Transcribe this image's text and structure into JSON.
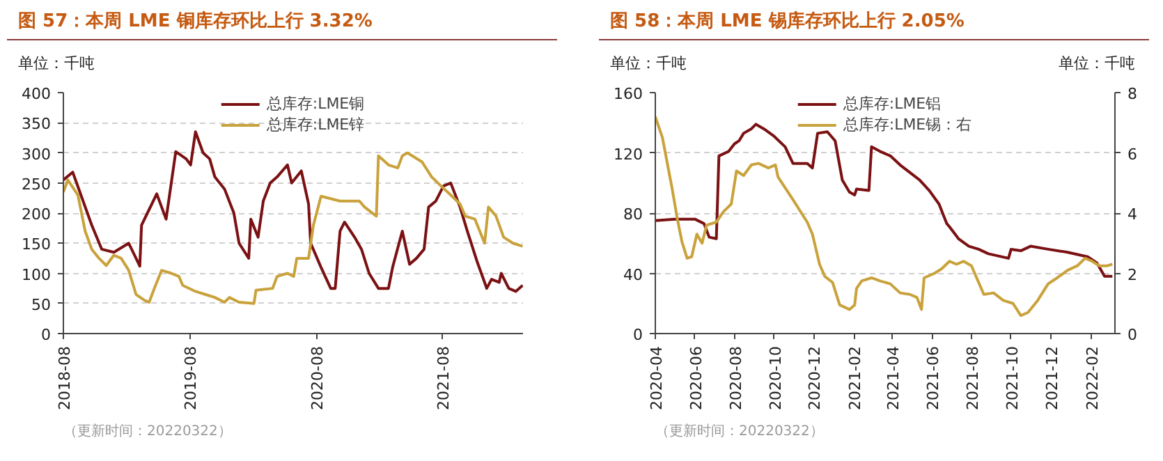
{
  "chart_data": [
    {
      "type": "line",
      "title": "图 57：本周 LME 铜库存环比上行 3.32%",
      "ylabel": "单位：千吨",
      "xlim": [
        "2018-08-01",
        "2022-03-22"
      ],
      "xticks": [
        "2018-08",
        "2019-08",
        "2020-08",
        "2021-08"
      ],
      "ylim": [
        0,
        400
      ],
      "yticks": [
        0,
        50,
        100,
        150,
        200,
        250,
        300,
        350,
        400
      ],
      "grid": "y",
      "legend": "top",
      "annotations": [
        "（更新时间：20220322）"
      ],
      "series": [
        {
          "name": "总库存:LME铜",
          "color": "#7b1113",
          "x": [
            "2018-08-01",
            "2018-08-28",
            "2018-10-22",
            "2018-11-20",
            "2018-12-25",
            "2019-02-06",
            "2019-03-10",
            "2019-03-15",
            "2019-04-01",
            "2019-04-28",
            "2019-05-25",
            "2019-06-22",
            "2019-07-22",
            "2019-08-04",
            "2019-08-18",
            "2019-09-09",
            "2019-09-28",
            "2019-10-13",
            "2019-11-10",
            "2019-12-07",
            "2019-12-22",
            "2020-01-19",
            "2020-01-25",
            "2020-02-15",
            "2020-03-01",
            "2020-03-21",
            "2020-04-10",
            "2020-05-10",
            "2020-05-22",
            "2020-06-19",
            "2020-07-10",
            "2020-07-16",
            "2020-08-15",
            "2020-09-12",
            "2020-09-25",
            "2020-10-09",
            "2020-10-22",
            "2020-11-20",
            "2020-12-10",
            "2021-01-01",
            "2021-01-28",
            "2021-02-26",
            "2021-03-10",
            "2021-04-07",
            "2021-04-28",
            "2021-05-18",
            "2021-06-09",
            "2021-06-22",
            "2021-07-13",
            "2021-08-04",
            "2021-08-25",
            "2021-09-21",
            "2021-10-12",
            "2021-11-09",
            "2021-12-01",
            "2021-12-07",
            "2021-12-21",
            "2022-01-12",
            "2022-01-18",
            "2022-02-09",
            "2022-03-01",
            "2022-03-21"
          ],
          "values": [
            255,
            268,
            180,
            140,
            135,
            150,
            112,
            180,
            200,
            232,
            190,
            302,
            290,
            280,
            335,
            300,
            290,
            260,
            240,
            200,
            150,
            125,
            190,
            160,
            220,
            250,
            260,
            280,
            250,
            270,
            215,
            150,
            110,
            75,
            75,
            170,
            185,
            160,
            140,
            100,
            75,
            75,
            110,
            170,
            115,
            125,
            140,
            210,
            220,
            245,
            250,
            210,
            170,
            120,
            85,
            75,
            90,
            85,
            100,
            75,
            70,
            80
          ]
        },
        {
          "name": "总库存:LME锌",
          "color": "#c9a23c",
          "x": [
            "2018-08-01",
            "2018-08-14",
            "2018-09-12",
            "2018-10-03",
            "2018-10-22",
            "2018-11-12",
            "2018-12-03",
            "2018-12-25",
            "2019-01-15",
            "2019-02-06",
            "2019-02-27",
            "2019-03-24",
            "2019-04-06",
            "2019-04-21",
            "2019-05-12",
            "2019-06-09",
            "2019-07-01",
            "2019-07-12",
            "2019-08-18",
            "2019-09-15",
            "2019-10-13",
            "2019-11-10",
            "2019-11-24",
            "2019-12-22",
            "2020-02-03",
            "2020-02-09",
            "2020-03-28",
            "2020-04-10",
            "2020-05-10",
            "2020-05-28",
            "2020-06-06",
            "2020-07-10",
            "2020-07-24",
            "2020-08-15",
            "2020-10-09",
            "2020-12-04",
            "2020-12-19",
            "2021-01-22",
            "2021-01-28",
            "2021-02-26",
            "2021-03-25",
            "2021-04-07",
            "2021-04-22",
            "2021-06-03",
            "2021-07-01",
            "2021-07-28",
            "2021-08-25",
            "2021-09-21",
            "2021-10-06",
            "2021-11-03",
            "2021-12-01",
            "2021-12-12",
            "2022-01-03",
            "2022-01-25",
            "2022-02-21",
            "2022-03-21"
          ],
          "values": [
            235,
            255,
            230,
            170,
            140,
            125,
            113,
            130,
            125,
            105,
            65,
            55,
            52,
            75,
            105,
            100,
            95,
            80,
            70,
            65,
            60,
            52,
            60,
            52,
            50,
            72,
            75,
            95,
            100,
            95,
            125,
            125,
            180,
            228,
            220,
            220,
            210,
            195,
            295,
            280,
            275,
            295,
            300,
            285,
            260,
            245,
            230,
            215,
            195,
            190,
            150,
            210,
            195,
            160,
            150,
            145
          ]
        }
      ]
    },
    {
      "type": "line",
      "title": "图 58：本周 LME 锡库存环比上行 2.05%",
      "ylabel": "单位：千吨",
      "y2label": "单位：千吨",
      "xlim": [
        "2020-04-01",
        "2022-03-10"
      ],
      "xticks": [
        "2020-04",
        "2020-06",
        "2020-08",
        "2020-10",
        "2020-12",
        "2021-02",
        "2021-04",
        "2021-06",
        "2021-08",
        "2021-10",
        "2021-12",
        "2022-02"
      ],
      "ylim": [
        0,
        160
      ],
      "yticks": [
        0,
        40,
        80,
        120,
        160
      ],
      "y2lim": [
        0,
        8
      ],
      "y2ticks": [
        0,
        2,
        4,
        6,
        8
      ],
      "grid": "y",
      "legend": "top",
      "annotations": [
        "（更新时间：20220322）"
      ],
      "series": [
        {
          "name": "总库存:LME铝",
          "color": "#7b1113",
          "x": [
            "2020-04-01",
            "2020-05-01",
            "2020-06-01",
            "2020-06-15",
            "2020-06-23",
            "2020-07-04",
            "2020-07-08",
            "2020-07-23",
            "2020-08-01",
            "2020-08-08",
            "2020-08-15",
            "2020-08-27",
            "2020-09-03",
            "2020-09-15",
            "2020-10-01",
            "2020-10-18",
            "2020-10-30",
            "2020-11-21",
            "2020-11-29",
            "2020-12-07",
            "2020-12-22",
            "2021-01-03",
            "2021-01-14",
            "2021-01-25",
            "2021-02-02",
            "2021-02-05",
            "2021-02-24",
            "2021-02-28",
            "2021-03-13",
            "2021-03-29",
            "2021-04-13",
            "2021-04-28",
            "2021-05-13",
            "2021-05-28",
            "2021-06-12",
            "2021-06-24",
            "2021-06-28",
            "2021-07-12",
            "2021-07-28",
            "2021-08-12",
            "2021-08-27",
            "2021-09-27",
            "2021-10-01",
            "2021-10-16",
            "2021-10-31",
            "2021-11-27",
            "2021-12-27",
            "2022-01-27",
            "2022-02-10",
            "2022-02-22",
            "2022-03-06"
          ],
          "values": [
            75,
            76,
            76,
            73,
            64,
            63,
            118,
            121,
            126,
            128,
            133,
            136,
            139,
            136,
            131,
            124,
            113,
            113,
            110,
            133,
            134,
            128,
            102,
            94,
            92,
            96,
            95,
            124,
            121,
            118,
            112,
            107,
            102,
            95,
            86,
            73,
            71,
            63,
            58,
            56,
            53,
            50,
            56,
            55,
            58,
            56,
            54,
            51,
            47,
            38,
            38
          ]
        },
        {
          "name": "总库存:LME锡：右",
          "color": "#c9a23c",
          "axis": "y2",
          "x": [
            "2020-04-01",
            "2020-04-12",
            "2020-04-27",
            "2020-05-05",
            "2020-05-12",
            "2020-05-20",
            "2020-05-27",
            "2020-06-04",
            "2020-06-12",
            "2020-06-19",
            "2020-07-04",
            "2020-07-15",
            "2020-07-27",
            "2020-08-04",
            "2020-08-15",
            "2020-08-27",
            "2020-09-07",
            "2020-09-22",
            "2020-10-03",
            "2020-10-07",
            "2020-10-30",
            "2020-11-21",
            "2020-11-29",
            "2020-12-10",
            "2020-12-18",
            "2020-12-30",
            "2021-01-10",
            "2021-01-25",
            "2021-02-02",
            "2021-02-05",
            "2021-02-13",
            "2021-02-28",
            "2021-03-13",
            "2021-03-29",
            "2021-04-13",
            "2021-04-28",
            "2021-05-09",
            "2021-05-16",
            "2021-05-20",
            "2021-06-05",
            "2021-06-16",
            "2021-06-28",
            "2021-07-09",
            "2021-07-20",
            "2021-08-01",
            "2021-08-20",
            "2021-09-04",
            "2021-09-19",
            "2021-10-04",
            "2021-10-16",
            "2021-10-27",
            "2021-11-11",
            "2021-11-27",
            "2021-12-11",
            "2021-12-27",
            "2022-01-11",
            "2022-01-23",
            "2022-02-03",
            "2022-02-14",
            "2022-02-26",
            "2022-03-06"
          ],
          "values": [
            7.2,
            6.5,
            4.8,
            3.8,
            3.05,
            2.5,
            2.55,
            3.3,
            3.0,
            3.6,
            3.7,
            4.05,
            4.3,
            5.4,
            5.25,
            5.6,
            5.65,
            5.5,
            5.6,
            5.2,
            4.45,
            3.7,
            3.3,
            2.3,
            1.9,
            1.7,
            0.95,
            0.8,
            0.95,
            1.5,
            1.75,
            1.85,
            1.75,
            1.65,
            1.35,
            1.3,
            1.2,
            0.8,
            1.85,
            2.0,
            2.15,
            2.4,
            2.3,
            2.4,
            2.25,
            1.3,
            1.35,
            1.1,
            1.0,
            0.6,
            0.7,
            1.1,
            1.65,
            1.85,
            2.1,
            2.25,
            2.5,
            2.4,
            2.25,
            2.25,
            2.3
          ]
        }
      ]
    }
  ]
}
